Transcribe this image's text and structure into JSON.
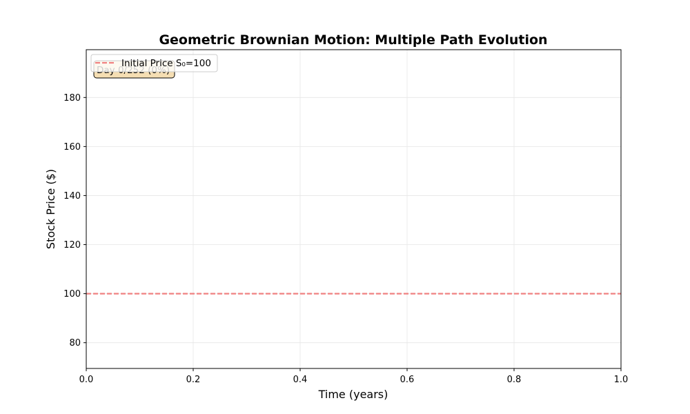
{
  "chart_data": {
    "type": "line",
    "title": "Geometric Brownian Motion: Multiple Path Evolution",
    "xlabel": "Time (years)",
    "ylabel": "Stock Price ($)",
    "xlim": [
      0.0,
      1.0
    ],
    "ylim": [
      69.5,
      199.5
    ],
    "xticks": [
      0.0,
      0.2,
      0.4,
      0.6,
      0.8,
      1.0
    ],
    "xtick_labels": [
      "0.0",
      "0.2",
      "0.4",
      "0.6",
      "0.8",
      "1.0"
    ],
    "yticks": [
      80,
      100,
      120,
      140,
      160,
      180
    ],
    "ytick_labels": [
      "80",
      "100",
      "120",
      "140",
      "160",
      "180"
    ],
    "grid": true,
    "legend_position": "top-left",
    "series": [
      {
        "name": "Initial Price S₀=100",
        "style": "dashed",
        "color": "#f08080",
        "x": [
          0.0,
          1.0
        ],
        "y": [
          100,
          100
        ]
      }
    ],
    "annotation": {
      "text": "Day 0/252 (0%)",
      "position": "top-left",
      "background": "#f5deb3"
    }
  }
}
